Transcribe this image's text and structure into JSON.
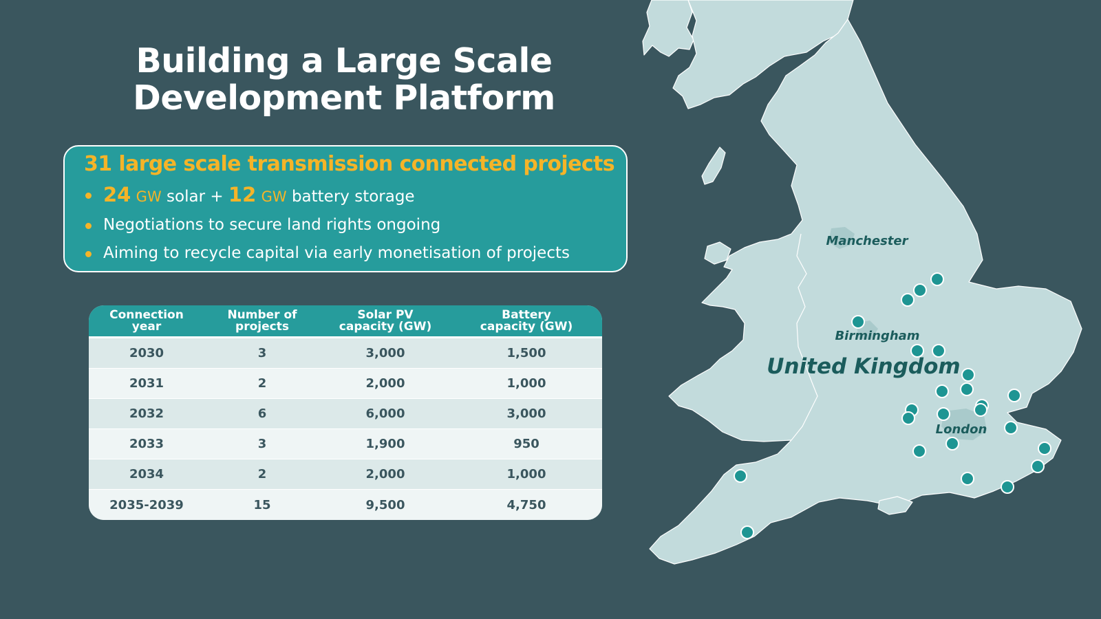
{
  "title_line1": "Building a Large Scale",
  "title_line2": "Development Platform",
  "infobox": {
    "heading": "31 large scale transmission connected projects",
    "bullet1": {
      "solar_value": "24",
      "solar_unit": "GW",
      "solar_text": "solar +",
      "battery_value": "12",
      "battery_unit": "GW",
      "battery_text": "battery storage"
    },
    "bullet2": "Negotiations to secure land rights ongoing",
    "bullet3": "Aiming to recycle capital via early monetisation of projects"
  },
  "table": {
    "headers": [
      [
        "Connection",
        "year"
      ],
      [
        "Number of",
        "projects"
      ],
      [
        "Solar PV",
        "capacity (GW)"
      ],
      [
        "Battery",
        "capacity (GW)"
      ]
    ],
    "rows": [
      [
        "2030",
        "3",
        "3,000",
        "1,500"
      ],
      [
        "2031",
        "2",
        "2,000",
        "1,000"
      ],
      [
        "2032",
        "6",
        "6,000",
        "3,000"
      ],
      [
        "2033",
        "3",
        "1,900",
        "950"
      ],
      [
        "2034",
        "2",
        "2,000",
        "1,000"
      ],
      [
        "2035-2039",
        "15",
        "9,500",
        "4,750"
      ]
    ]
  },
  "map": {
    "country_label": "United Kingdom",
    "cities": [
      "Manchester",
      "Birmingham",
      "London"
    ],
    "land_color": "#c2dbdc",
    "marker_color": "#1e9593"
  }
}
